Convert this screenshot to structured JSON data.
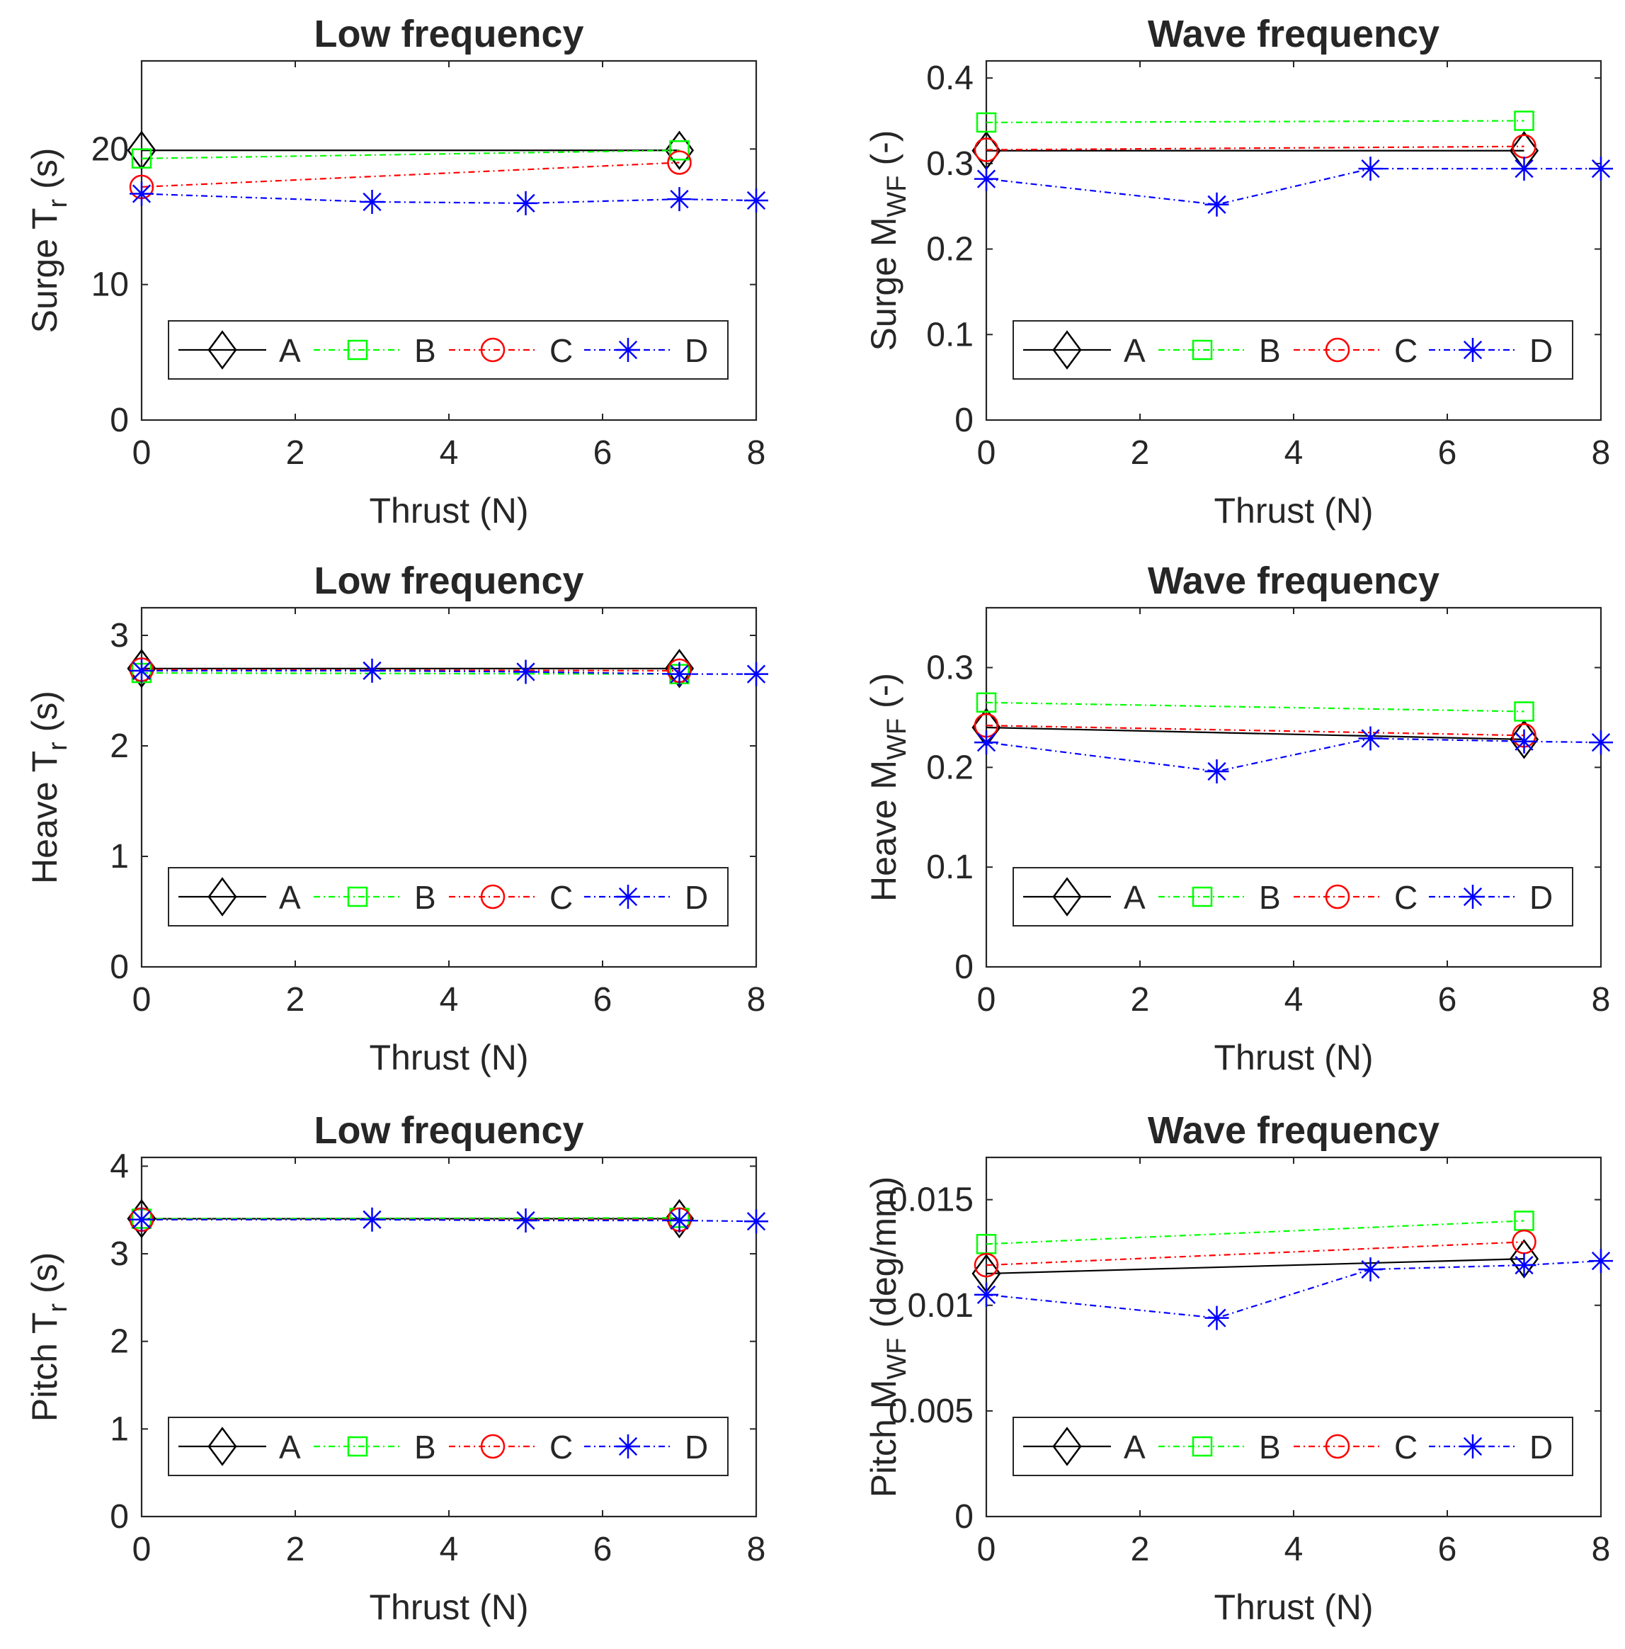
{
  "figure_description_colors": {
    "A": "#000000",
    "B": "#00ff00",
    "C": "#ff0000",
    "D": "#0000ff"
  },
  "chart_data": [
    {
      "type": "line",
      "title": "Low frequency",
      "xlabel": "Thrust (N)",
      "ylabel": {
        "prefix": "Surge T",
        "sub": "r",
        "suffix": "(s)"
      },
      "xlim": [
        0,
        8
      ],
      "ylim": [
        0,
        26.5
      ],
      "xticks": [
        0,
        2,
        4,
        6,
        8
      ],
      "xtick_labels": [
        "0",
        "2",
        "4",
        "6",
        "8"
      ],
      "yticks": [
        0,
        10,
        20
      ],
      "ytick_labels": [
        "0",
        "10",
        "20"
      ],
      "legend": [
        "A",
        "B",
        "C",
        "D"
      ],
      "series": [
        {
          "name": "A",
          "x": [
            0,
            7
          ],
          "y": [
            19.9,
            19.9
          ]
        },
        {
          "name": "B",
          "x": [
            0,
            7
          ],
          "y": [
            19.3,
            19.9
          ]
        },
        {
          "name": "C",
          "x": [
            0,
            7
          ],
          "y": [
            17.2,
            19.0
          ]
        },
        {
          "name": "D",
          "x": [
            0,
            3,
            5,
            7,
            8
          ],
          "y": [
            16.7,
            16.1,
            16.0,
            16.3,
            16.2
          ]
        }
      ]
    },
    {
      "type": "line",
      "title": "Wave frequency",
      "xlabel": "Thrust (N)",
      "ylabel": {
        "prefix": "Surge M",
        "sub": "WF",
        "suffix": "(-)"
      },
      "xlim": [
        0,
        8
      ],
      "ylim": [
        0,
        0.42
      ],
      "xticks": [
        0,
        2,
        4,
        6,
        8
      ],
      "xtick_labels": [
        "0",
        "2",
        "4",
        "6",
        "8"
      ],
      "yticks": [
        0,
        0.1,
        0.2,
        0.3,
        0.4
      ],
      "ytick_labels": [
        "0",
        "0.1",
        "0.2",
        "0.3",
        "0.4"
      ],
      "legend": [
        "A",
        "B",
        "C",
        "D"
      ],
      "series": [
        {
          "name": "A",
          "x": [
            0,
            7
          ],
          "y": [
            0.315,
            0.315
          ]
        },
        {
          "name": "B",
          "x": [
            0,
            7
          ],
          "y": [
            0.348,
            0.35
          ]
        },
        {
          "name": "C",
          "x": [
            0,
            7
          ],
          "y": [
            0.316,
            0.32
          ]
        },
        {
          "name": "D",
          "x": [
            0,
            3,
            5,
            7,
            8
          ],
          "y": [
            0.282,
            0.252,
            0.294,
            0.294,
            0.294
          ]
        }
      ]
    },
    {
      "type": "line",
      "title": "Low frequency",
      "xlabel": "Thrust (N)",
      "ylabel": {
        "prefix": "Heave T",
        "sub": "r",
        "suffix": "(s)"
      },
      "xlim": [
        0,
        8
      ],
      "ylim": [
        0,
        3.25
      ],
      "xticks": [
        0,
        2,
        4,
        6,
        8
      ],
      "xtick_labels": [
        "0",
        "2",
        "4",
        "6",
        "8"
      ],
      "yticks": [
        0,
        1,
        2,
        3
      ],
      "ytick_labels": [
        "0",
        "1",
        "2",
        "3"
      ],
      "legend": [
        "A",
        "B",
        "C",
        "D"
      ],
      "series": [
        {
          "name": "A",
          "x": [
            0,
            7
          ],
          "y": [
            2.7,
            2.7
          ]
        },
        {
          "name": "B",
          "x": [
            0,
            7
          ],
          "y": [
            2.66,
            2.65
          ]
        },
        {
          "name": "C",
          "x": [
            0,
            7
          ],
          "y": [
            2.69,
            2.68
          ]
        },
        {
          "name": "D",
          "x": [
            0,
            3,
            5,
            7,
            8
          ],
          "y": [
            2.68,
            2.68,
            2.67,
            2.65,
            2.65
          ]
        }
      ]
    },
    {
      "type": "line",
      "title": "Wave frequency",
      "xlabel": "Thrust (N)",
      "ylabel": {
        "prefix": "Heave M",
        "sub": "WF",
        "suffix": "(-)"
      },
      "xlim": [
        0,
        8
      ],
      "ylim": [
        0,
        0.36
      ],
      "xticks": [
        0,
        2,
        4,
        6,
        8
      ],
      "xtick_labels": [
        "0",
        "2",
        "4",
        "6",
        "8"
      ],
      "yticks": [
        0,
        0.1,
        0.2,
        0.3
      ],
      "ytick_labels": [
        "0",
        "0.1",
        "0.2",
        "0.3"
      ],
      "legend": [
        "A",
        "B",
        "C",
        "D"
      ],
      "series": [
        {
          "name": "A",
          "x": [
            0,
            7
          ],
          "y": [
            0.24,
            0.228
          ]
        },
        {
          "name": "B",
          "x": [
            0,
            7
          ],
          "y": [
            0.265,
            0.256
          ]
        },
        {
          "name": "C",
          "x": [
            0,
            7
          ],
          "y": [
            0.242,
            0.232
          ]
        },
        {
          "name": "D",
          "x": [
            0,
            3,
            5,
            7,
            8
          ],
          "y": [
            0.225,
            0.196,
            0.229,
            0.226,
            0.225
          ]
        }
      ]
    },
    {
      "type": "line",
      "title": "Low frequency",
      "xlabel": "Thrust (N)",
      "ylabel": {
        "prefix": "Pitch T",
        "sub": "r",
        "suffix": "(s)"
      },
      "xlim": [
        0,
        8
      ],
      "ylim": [
        0,
        4.1
      ],
      "xticks": [
        0,
        2,
        4,
        6,
        8
      ],
      "xtick_labels": [
        "0",
        "2",
        "4",
        "6",
        "8"
      ],
      "yticks": [
        0,
        1,
        2,
        3,
        4
      ],
      "ytick_labels": [
        "0",
        "1",
        "2",
        "3",
        "4"
      ],
      "legend": [
        "A",
        "B",
        "C",
        "D"
      ],
      "series": [
        {
          "name": "A",
          "x": [
            0,
            7
          ],
          "y": [
            3.4,
            3.4
          ]
        },
        {
          "name": "B",
          "x": [
            0,
            7
          ],
          "y": [
            3.4,
            3.41
          ]
        },
        {
          "name": "C",
          "x": [
            0,
            7
          ],
          "y": [
            3.39,
            3.39
          ]
        },
        {
          "name": "D",
          "x": [
            0,
            3,
            5,
            7,
            8
          ],
          "y": [
            3.39,
            3.39,
            3.38,
            3.38,
            3.37
          ]
        }
      ]
    },
    {
      "type": "line",
      "title": "Wave frequency",
      "xlabel": "Thrust (N)",
      "ylabel": {
        "prefix": "Pitch M",
        "sub": "WF",
        "suffix": "(deg/mm)"
      },
      "xlim": [
        0,
        8
      ],
      "ylim": [
        0,
        0.017
      ],
      "xticks": [
        0,
        2,
        4,
        6,
        8
      ],
      "xtick_labels": [
        "0",
        "2",
        "4",
        "6",
        "8"
      ],
      "yticks": [
        0,
        0.005,
        0.01,
        0.015
      ],
      "ytick_labels": [
        "0",
        "0.005",
        "0.01",
        "0.015"
      ],
      "legend": [
        "A",
        "B",
        "C",
        "D"
      ],
      "series": [
        {
          "name": "A",
          "x": [
            0,
            7
          ],
          "y": [
            0.0115,
            0.0122
          ]
        },
        {
          "name": "B",
          "x": [
            0,
            7
          ],
          "y": [
            0.0129,
            0.014
          ]
        },
        {
          "name": "C",
          "x": [
            0,
            7
          ],
          "y": [
            0.0119,
            0.013
          ]
        },
        {
          "name": "D",
          "x": [
            0,
            3,
            5,
            7,
            8
          ],
          "y": [
            0.0105,
            0.0094,
            0.0117,
            0.0119,
            0.0121
          ]
        }
      ]
    }
  ]
}
